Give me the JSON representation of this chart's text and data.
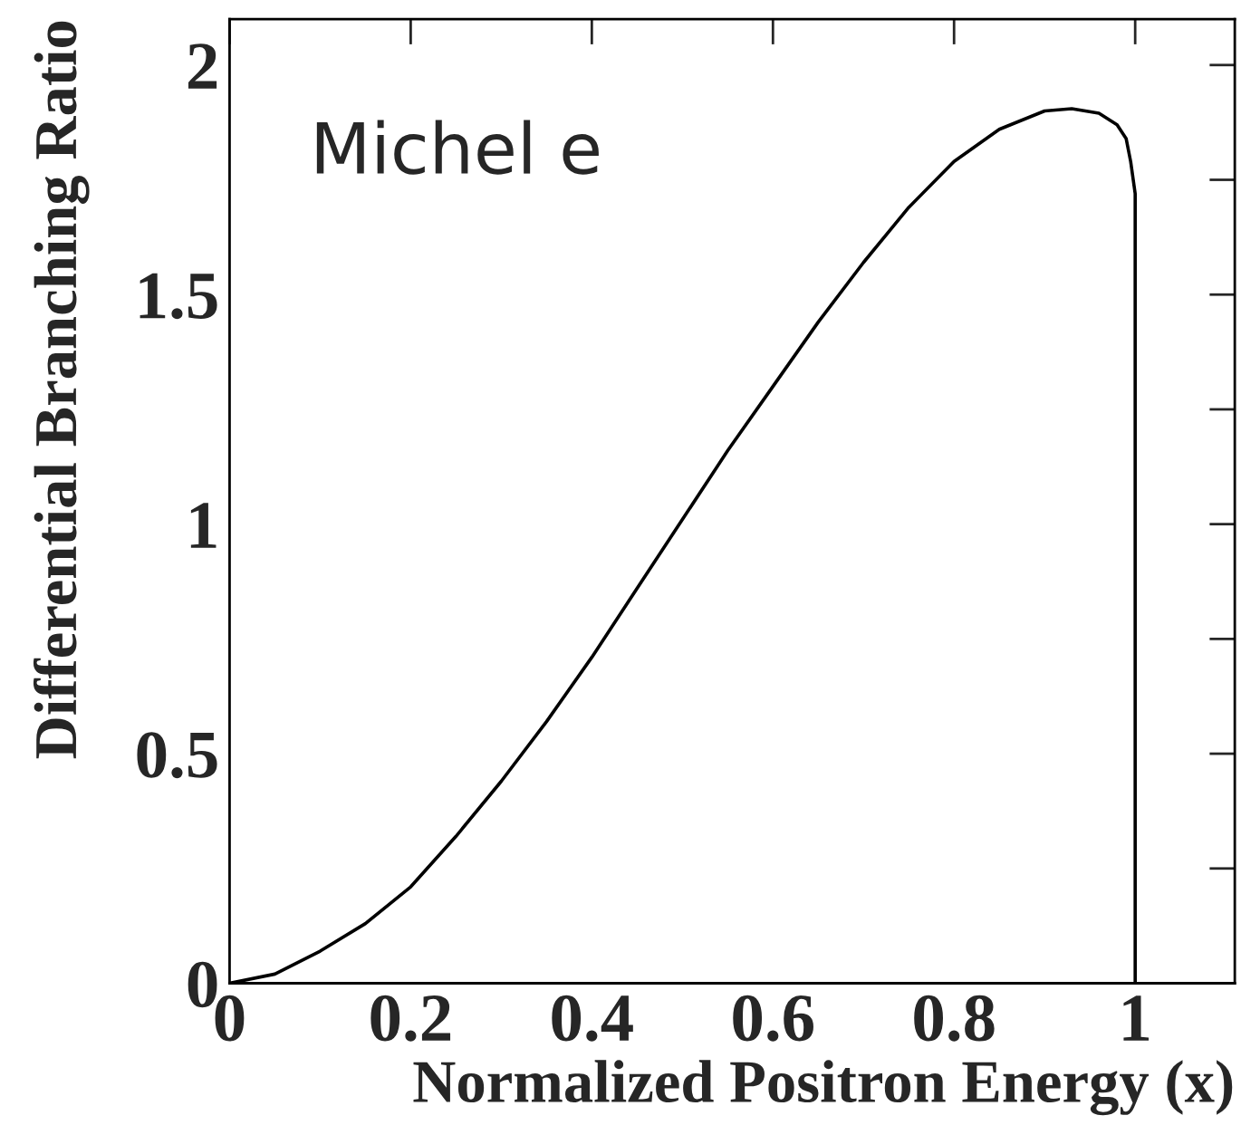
{
  "chart_data": {
    "type": "line",
    "xlabel": "Normalized Positron Energy (x)",
    "ylabel": "Differential Branching Ratio",
    "annotations": [
      "Michel e"
    ],
    "x": [
      0,
      0.05,
      0.1,
      0.15,
      0.2,
      0.25,
      0.3,
      0.35,
      0.4,
      0.45,
      0.5,
      0.55,
      0.6,
      0.65,
      0.7,
      0.75,
      0.8,
      0.85,
      0.9,
      0.93,
      0.96,
      0.98,
      0.99,
      0.995,
      1.0,
      1.0
    ],
    "series": [
      {
        "color": "#000000",
        "values": [
          0,
          0.02,
          0.07,
          0.13,
          0.21,
          0.32,
          0.44,
          0.57,
          0.71,
          0.86,
          1.01,
          1.16,
          1.3,
          1.44,
          1.57,
          1.69,
          1.79,
          1.86,
          1.9,
          1.905,
          1.895,
          1.87,
          1.84,
          1.79,
          1.72,
          0
        ]
      }
    ],
    "xlim": [
      0,
      1.11
    ],
    "xticks": [
      0,
      0.2,
      0.4,
      0.6,
      0.8,
      1
    ],
    "ylim": [
      0,
      2.1
    ],
    "yticks": [
      0,
      {
        "value": 0.25,
        "label": null
      },
      0.5,
      {
        "value": 0.75,
        "label": null
      },
      1,
      {
        "value": 1.25,
        "label": null
      },
      1.5,
      {
        "value": 1.75,
        "label": null
      },
      2
    ],
    "grid": false,
    "legend": false,
    "marker": "none",
    "line_style": "solid"
  }
}
